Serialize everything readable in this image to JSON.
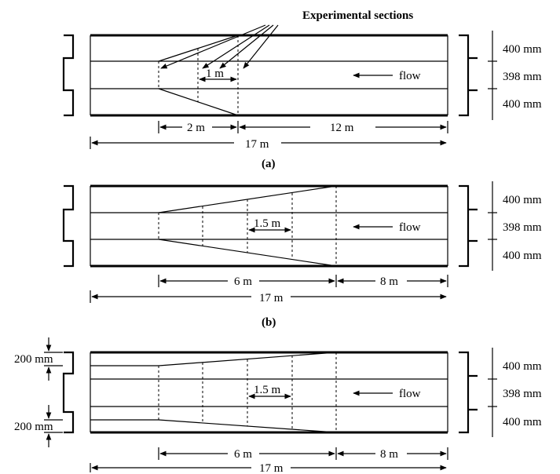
{
  "header": {
    "experimental_sections": "Experimental sections"
  },
  "panel_a": {
    "caption": "(a)",
    "top_width": "400 mm",
    "middle_width": "398 mm",
    "bottom_width": "400 mm",
    "flow_label": "flow",
    "section_spacing": "1 m",
    "transition_length": "2 m",
    "upstream_length": "12 m",
    "total_length": "17 m"
  },
  "panel_b": {
    "caption": "(b)",
    "top_width": "400 mm",
    "middle_width": "398 mm",
    "bottom_width": "400 mm",
    "flow_label": "flow",
    "section_spacing": "1.5 m",
    "transition_length": "6 m",
    "upstream_length": "8 m",
    "total_length": "17 m"
  },
  "panel_c": {
    "top_width": "400 mm",
    "middle_width": "398 mm",
    "bottom_width": "400 mm",
    "flow_label": "flow",
    "section_spacing": "1.5 m",
    "transition_length": "6 m",
    "upstream_length": "8 m",
    "total_length": "17 m",
    "left_top_offset": "200 mm",
    "left_bottom_offset": "200 mm"
  }
}
